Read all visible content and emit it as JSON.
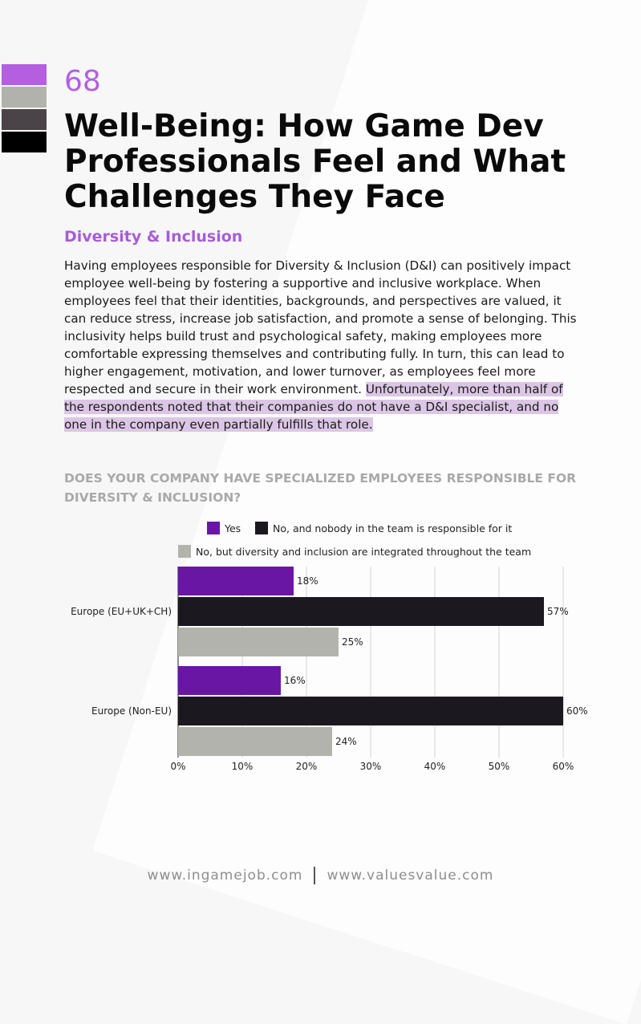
{
  "page": {
    "number": "68",
    "title": "Well-Being: How Game Dev Professionals Feel and What Challenges They Face",
    "section_title": "Diversity & Inclusion",
    "body_plain": "Having employees responsible for Diversity & Inclusion (D&I) can positively impact employee well-being by fostering a supportive and inclusive workplace. When employees feel that their identities, backgrounds, and perspectives are valued, it can reduce stress, increase job satisfaction, and promote a sense of belonging. This inclusivity helps build trust and psychological safety, making employees more comfortable expressing themselves and contributing fully. In turn, this can lead to higher engagement, motivation, and lower turnover, as employees feel more respected and secure in their work environment.",
    "body_highlight": "Unfortunately, more than half of the respondents noted that their companies do not have a D&I specialist, and no one in the company even partially fulfills that role.",
    "chart_question": "DOES YOUR COMPANY HAVE SPECIALIZED EMPLOYEES RESPONSIBLE FOR DIVERSITY & INCLUSION?"
  },
  "footer": {
    "left": "www.ingamejob.com",
    "right": "www.valuesvalue.com"
  },
  "swatch_colors": [
    "#b45fdf",
    "#b2b2ac",
    "#4a4348",
    "#000000"
  ],
  "chart_data": {
    "type": "bar",
    "orientation": "horizontal",
    "categories": [
      "Europe (EU+UK+CH)",
      "Europe (Non-EU)"
    ],
    "series": [
      {
        "name": "Yes",
        "color": "#6a16a4",
        "values": [
          18,
          16
        ]
      },
      {
        "name": "No, and nobody in the team is responsible for it",
        "color": "#1c1820",
        "values": [
          57,
          60
        ]
      },
      {
        "name": "No, but diversity and inclusion are integrated throughout the team",
        "color": "#b3b3ad",
        "values": [
          25,
          24
        ]
      }
    ],
    "value_suffix": "%",
    "xlim": [
      0,
      60
    ],
    "xticks": [
      "0%",
      "10%",
      "20%",
      "30%",
      "40%",
      "50%",
      "60%"
    ],
    "grid": true,
    "legend_position": "top"
  }
}
